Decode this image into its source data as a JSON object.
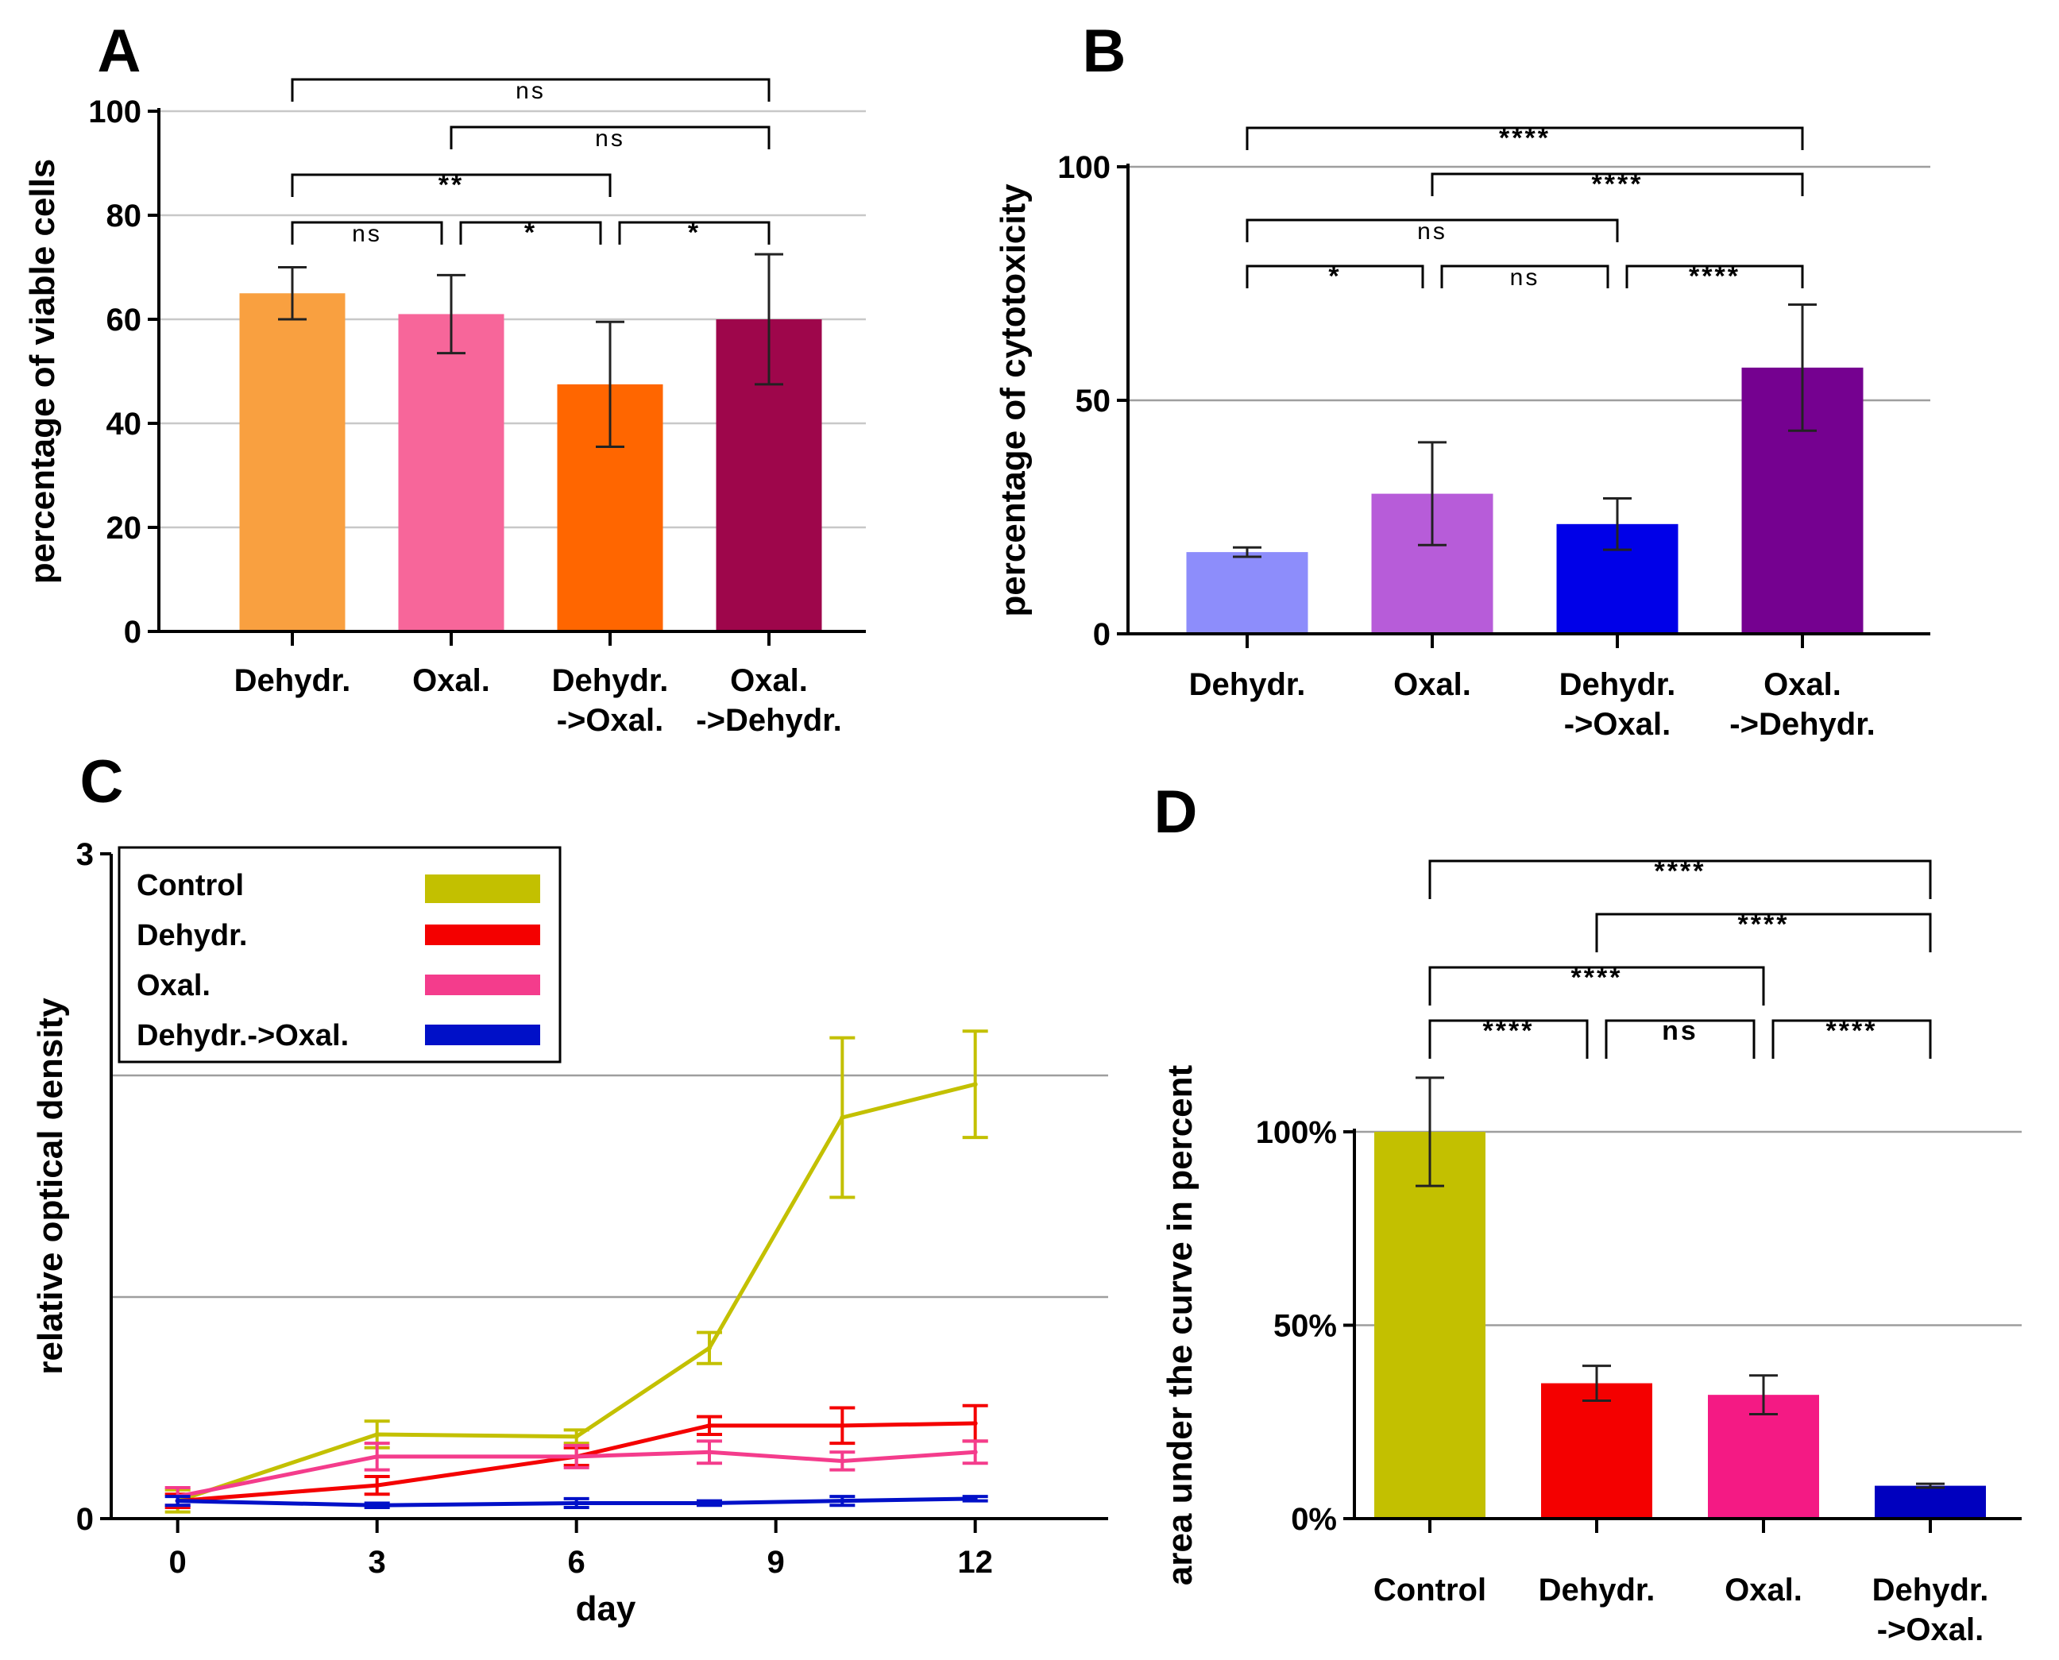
{
  "chart_data": [
    {
      "panel": "A",
      "type": "bar",
      "ylabel": "percentage of viable cells",
      "ylim": [
        0,
        100
      ],
      "yticks": [
        0,
        20,
        40,
        60,
        80,
        100
      ],
      "grid": true,
      "categories": [
        "Dehydr.",
        "Oxal.",
        "Dehydr.\n->Oxal.",
        "Oxal.\n->Dehydr."
      ],
      "values": [
        65,
        61,
        47.5,
        60
      ],
      "errors": [
        5,
        7.5,
        12,
        12.5
      ],
      "colors": [
        "#f9a040",
        "#f7669a",
        "#ff6600",
        "#9e064b"
      ],
      "significance": [
        {
          "from": 0,
          "to": 1,
          "label": "ns",
          "level": 0
        },
        {
          "from": 1,
          "to": 2,
          "label": "*",
          "level": 0
        },
        {
          "from": 2,
          "to": 3,
          "label": "*",
          "level": 0
        },
        {
          "from": 0,
          "to": 2,
          "label": "**",
          "level": 1
        },
        {
          "from": 1,
          "to": 3,
          "label": "ns",
          "level": 2
        },
        {
          "from": 0,
          "to": 3,
          "label": "ns",
          "level": 3
        }
      ]
    },
    {
      "panel": "B",
      "type": "bar",
      "ylabel": "percentage of cytotoxicity",
      "ylim": [
        0,
        100
      ],
      "yticks": [
        0,
        50,
        100
      ],
      "grid": true,
      "categories": [
        "Dehydr.",
        "Oxal.",
        "Dehydr.\n->Oxal.",
        "Oxal.\n->Dehydr."
      ],
      "values": [
        17.5,
        30,
        23.5,
        57
      ],
      "errors": [
        1,
        11,
        5.5,
        13.5
      ],
      "colors": [
        "#8d8dfb",
        "#b75cd9",
        "#0000e8",
        "#750190"
      ],
      "significance": [
        {
          "from": 0,
          "to": 1,
          "label": "*",
          "level": 0
        },
        {
          "from": 1,
          "to": 2,
          "label": "ns",
          "level": 0
        },
        {
          "from": 2,
          "to": 3,
          "label": "****",
          "level": 0
        },
        {
          "from": 0,
          "to": 2,
          "label": "ns",
          "level": 1
        },
        {
          "from": 1,
          "to": 3,
          "label": "****",
          "level": 2
        },
        {
          "from": 0,
          "to": 3,
          "label": "****",
          "level": 3
        }
      ]
    },
    {
      "panel": "C",
      "type": "line",
      "xlabel": "day",
      "ylabel": "relative optical density",
      "xlim": [
        -1,
        14
      ],
      "ylim": [
        0,
        3
      ],
      "xticks": [
        0,
        3,
        6,
        9,
        12
      ],
      "yticks": [
        0,
        3
      ],
      "gridlines_y": [
        1,
        2
      ],
      "legend_position": "top-left",
      "series": [
        {
          "name": "Control",
          "color": "#c3c000",
          "x": [
            0,
            3,
            6,
            8,
            10,
            12
          ],
          "y": [
            0.08,
            0.38,
            0.37,
            0.77,
            1.81,
            1.96
          ],
          "err": [
            0.05,
            0.06,
            0.03,
            0.07,
            0.36,
            0.24
          ]
        },
        {
          "name": "Dehydr.",
          "color": "#f40000",
          "x": [
            0,
            3,
            6,
            8,
            10,
            12
          ],
          "y": [
            0.08,
            0.15,
            0.28,
            0.42,
            0.42,
            0.43
          ],
          "err": [
            0.03,
            0.04,
            0.04,
            0.04,
            0.08,
            0.08
          ]
        },
        {
          "name": "Oxal.",
          "color": "#f43c8c",
          "x": [
            0,
            3,
            6,
            8,
            10,
            12
          ],
          "y": [
            0.1,
            0.28,
            0.28,
            0.3,
            0.26,
            0.3
          ],
          "err": [
            0.04,
            0.06,
            0.05,
            0.05,
            0.04,
            0.05
          ]
        },
        {
          "name": "Dehydr.->Oxal.",
          "color": "#0010c8",
          "x": [
            0,
            3,
            6,
            8,
            10,
            12
          ],
          "y": [
            0.08,
            0.06,
            0.07,
            0.07,
            0.08,
            0.09
          ],
          "err": [
            0.02,
            0.01,
            0.02,
            0.01,
            0.02,
            0.01
          ]
        }
      ]
    },
    {
      "panel": "D",
      "type": "bar",
      "ylabel": "area under the curve in percent",
      "ylim": [
        0,
        100
      ],
      "yticks": [
        0,
        50,
        100
      ],
      "ytick_labels": [
        "0%",
        "50%",
        "100%"
      ],
      "grid": true,
      "categories": [
        "Control",
        "Dehydr.",
        "Oxal.",
        "Dehydr.\n->Oxal."
      ],
      "values": [
        100,
        35,
        32,
        8.5
      ],
      "errors": [
        14,
        4.5,
        5,
        0.5
      ],
      "colors": [
        "#c3c000",
        "#f40000",
        "#f41a84",
        "#0000bf"
      ],
      "significance": [
        {
          "from": 0,
          "to": 1,
          "label": "****",
          "level": 0
        },
        {
          "from": 1,
          "to": 2,
          "label": "ns",
          "level": 0
        },
        {
          "from": 2,
          "to": 3,
          "label": "****",
          "level": 0
        },
        {
          "from": 0,
          "to": 2,
          "label": "****",
          "level": 1
        },
        {
          "from": 1,
          "to": 3,
          "label": "****",
          "level": 2
        },
        {
          "from": 0,
          "to": 3,
          "label": "****",
          "level": 3
        }
      ]
    }
  ]
}
